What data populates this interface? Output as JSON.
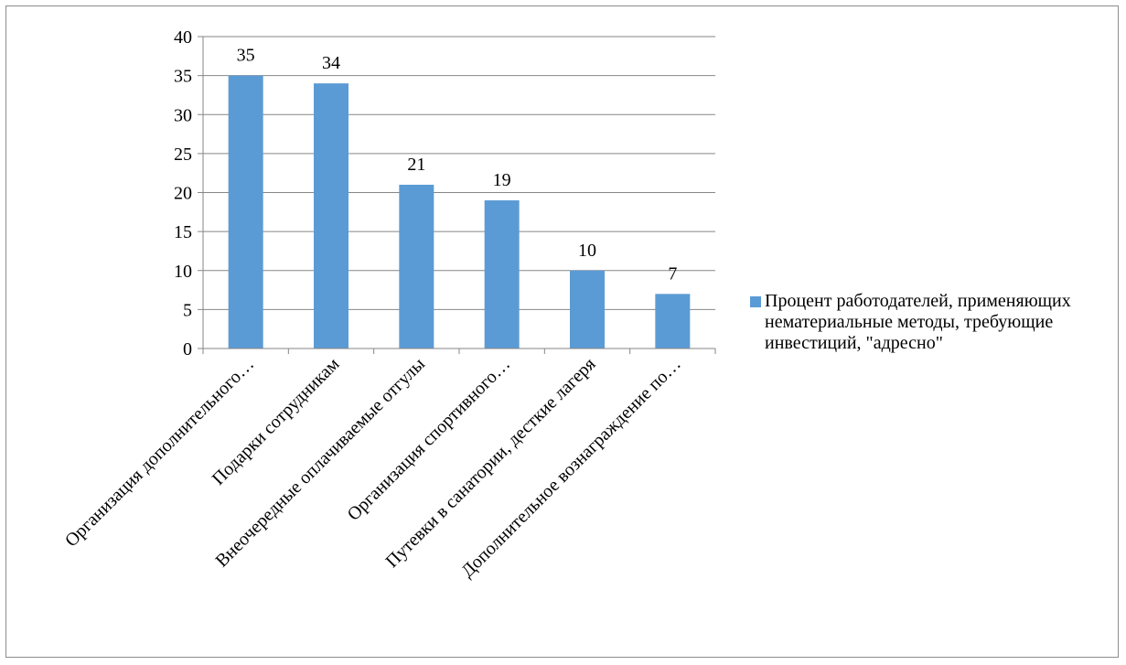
{
  "colors": {
    "bar": "#5b9bd5",
    "grid": "#868686",
    "axis": "#868686"
  },
  "chart_data": {
    "type": "bar",
    "categories": [
      "Организация дополнительного…",
      "Подарки сотрудникам",
      "Внеочередные оплачиваемые отгулы",
      "Организация спортивного…",
      "Путевки в санатории, десткие лагеря",
      "Дополнительное вознаграждение по…"
    ],
    "series": [
      {
        "name": "Процент работодателей, применяющих нематериальные методы, требующие инвестиций, \"адресно\"",
        "values": [
          35,
          34,
          21,
          19,
          10,
          7
        ]
      }
    ],
    "ylim": [
      0,
      40
    ],
    "yticks": [
      0,
      5,
      10,
      15,
      20,
      25,
      30,
      35,
      40
    ],
    "grid": true,
    "legend": "right",
    "data_labels": true
  }
}
